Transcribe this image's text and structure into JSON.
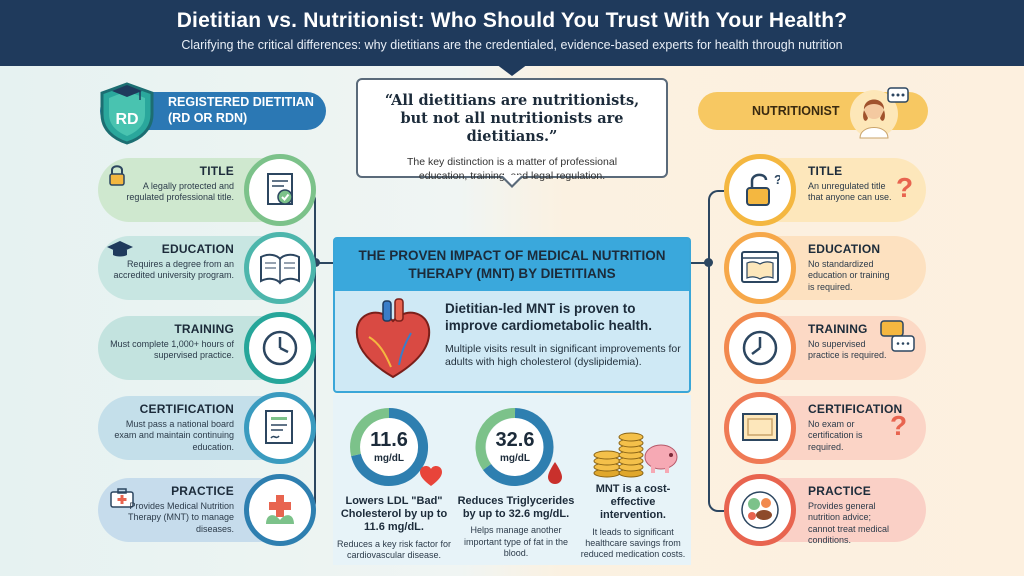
{
  "header": {
    "title": "Dietitian vs. Nutritionist: Who Should You Trust With Your Health?",
    "subtitle": "Clarifying the critical differences: why dietitians are the credentialed, evidence-based experts for health through nutrition"
  },
  "left_banner": {
    "badge": "RD",
    "title_line1": "REGISTERED DIETITIAN",
    "title_line2": "(RD OR RDN)"
  },
  "right_banner": {
    "title": "NUTRITIONIST"
  },
  "quote": {
    "line1": "“All dietitians are nutritionists,",
    "line2": "but not all nutritionists are dietitians.”",
    "sub1": "The key distinction is a matter of professional",
    "sub2": "education, training, and legal regulation."
  },
  "rd_items": [
    {
      "title": "TITLE",
      "desc": "A legally protected and regulated professional title.",
      "icon": "certificate-seal-icon"
    },
    {
      "title": "EDUCATION",
      "desc": "Requires a degree from an accredited university program.",
      "icon": "open-book-icon"
    },
    {
      "title": "TRAINING",
      "desc": "Must complete 1,000+ hours of supervised practice.",
      "icon": "clock-icon"
    },
    {
      "title": "CERTIFICATION",
      "desc": "Must pass a national board exam and maintain continuing education.",
      "icon": "certificate-icon"
    },
    {
      "title": "PRACTICE",
      "desc": "Provides Medical Nutrition Therapy (MNT) to manage diseases.",
      "icon": "medical-leaf-icon"
    }
  ],
  "nut_items": [
    {
      "title": "TITLE",
      "desc": "An unregulated title that anyone can use.",
      "icon": "open-padlock-icon"
    },
    {
      "title": "EDUCATION",
      "desc": "No standardized education or training is required.",
      "icon": "browser-book-icon"
    },
    {
      "title": "TRAINING",
      "desc": "No supervised practice is required.",
      "icon": "clock-icon"
    },
    {
      "title": "CERTIFICATION",
      "desc": "No exam or certification is required.",
      "icon": "blank-certificate-icon"
    },
    {
      "title": "PRACTICE",
      "desc": "Provides general nutrition advice; cannot treat medical conditions.",
      "icon": "food-plate-icon"
    }
  ],
  "mnt": {
    "heading_line1": "THE PROVEN IMPACT OF MEDICAL NUTRITION",
    "heading_line2": "THERAPY (MNT) BY DIETITIANS",
    "claim": "Dietitian-led MNT is proven to improve cardiometabolic health.",
    "detail": "Multiple visits result in significant improvements for adults with high cholesterol (dyslipidemia)."
  },
  "stats": [
    {
      "value": "11.6",
      "unit": "mg/dL",
      "headline": "Lowers LDL \"Bad\" Cholesterol by up to 11.6 mg/dL.",
      "detail": "Reduces a key risk factor for cardiovascular disease."
    },
    {
      "value": "32.6",
      "unit": "mg/dL",
      "headline": "Reduces Triglycerides by up to 32.6 mg/dL.",
      "detail": "Helps manage another important type of fat in the blood."
    },
    {
      "headline": "MNT is a cost-effective intervention.",
      "detail": "It leads to significant healthcare savings from reduced medication costs."
    }
  ],
  "colors": {
    "navy": "#1f3a5c",
    "rd_title": "#7cc28a",
    "rd_education": "#4db6ac",
    "rd_training": "#26a69a",
    "rd_certification": "#3a9bbf",
    "rd_practice": "#2e7fb0",
    "nut_title": "#f4b740",
    "nut_education": "#f6a84a",
    "nut_training": "#f2894e",
    "nut_certification": "#ef7a55",
    "nut_practice": "#e8644f",
    "mnt_blue": "#3aa8dc"
  }
}
